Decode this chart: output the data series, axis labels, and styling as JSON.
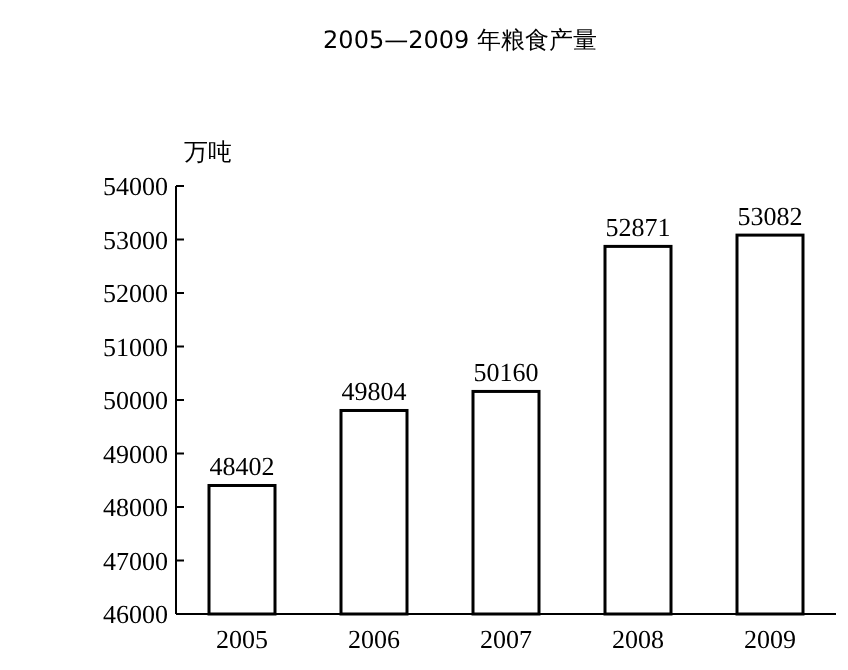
{
  "chart_data": {
    "type": "bar",
    "title": "2005—2009 年粮食产量",
    "ylabel": "万吨",
    "categories": [
      "2005",
      "2006",
      "2007",
      "2008",
      "2009"
    ],
    "values": [
      48402,
      49804,
      50160,
      52871,
      53082
    ],
    "color": "#ffffff",
    "ylim": [
      46000,
      54000
    ],
    "yticks": [
      46000,
      47000,
      48000,
      49000,
      50000,
      51000,
      52000,
      53000,
      54000
    ],
    "data_labels": true
  }
}
